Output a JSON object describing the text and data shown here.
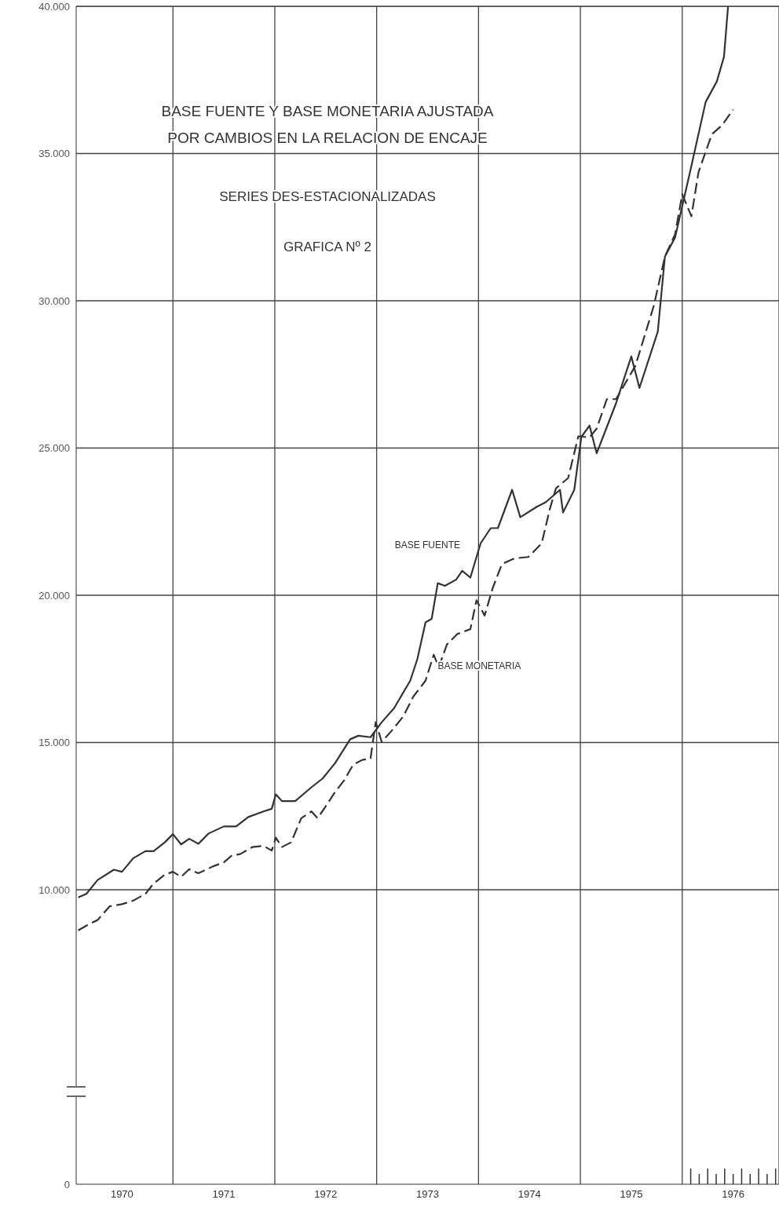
{
  "chart_data": {
    "type": "line",
    "title": "BASE FUENTE Y BASE MONETARIA AJUSTADA\nPOR CAMBIOS EN LA RELACION DE ENCAJE",
    "subtitle": "SERIES DES-ESTACIONALIZADAS",
    "annotations": [
      "GRAFICA Nº 2"
    ],
    "xlim": [
      1970.05,
      1976.95
    ],
    "ylim": [
      0,
      40000
    ],
    "xticks": [
      {
        "value": 1970.5,
        "label": "1970"
      },
      {
        "value": 1971,
        "label": null
      },
      {
        "value": 1971.5,
        "label": "1971"
      },
      {
        "value": 1972,
        "label": null
      },
      {
        "value": 1972.5,
        "label": "1972"
      },
      {
        "value": 1973,
        "label": null
      },
      {
        "value": 1973.5,
        "label": "1973"
      },
      {
        "value": 1974,
        "label": null
      },
      {
        "value": 1974.5,
        "label": "1974"
      },
      {
        "value": 1975,
        "label": null
      },
      {
        "value": 1975.5,
        "label": "1975"
      },
      {
        "value": 1976,
        "label": null
      },
      {
        "value": 1976.5,
        "label": "1976"
      }
    ],
    "yticks": [
      0,
      {
        "value": 10000,
        "label": "10.000"
      },
      {
        "value": 15000,
        "label": "15.000"
      },
      {
        "value": 20000,
        "label": "20.000"
      },
      {
        "value": 25000,
        "label": "25.000"
      },
      {
        "value": 30000,
        "label": "30.000"
      },
      {
        "value": 35000,
        "label": "35.000"
      },
      {
        "value": 40000,
        "label": "40.000"
      }
    ],
    "grid": true,
    "legend": false,
    "marker": "none",
    "series": [
      {
        "name": "BASE FUENTE",
        "color": "#333333",
        "line_style": "solid",
        "x": [
          1970.07,
          1970.15,
          1970.26,
          1970.42,
          1970.5,
          1970.61,
          1970.73,
          1970.81,
          1970.92,
          1971.0,
          1971.08,
          1971.16,
          1971.25,
          1971.35,
          1971.5,
          1971.62,
          1971.74,
          1971.89,
          1971.97,
          1972.01,
          1972.07,
          1972.2,
          1972.36,
          1972.47,
          1972.59,
          1972.74,
          1972.82,
          1972.94,
          1973.05,
          1973.17,
          1973.33,
          1973.4,
          1973.48,
          1973.54,
          1973.6,
          1973.67,
          1973.78,
          1973.84,
          1973.92,
          1974.02,
          1974.12,
          1974.19,
          1974.33,
          1974.41,
          1974.57,
          1974.66,
          1974.8,
          1974.83,
          1974.94,
          1975.01,
          1975.09,
          1975.16,
          1975.35,
          1975.5,
          1975.58,
          1975.76,
          1975.83,
          1975.93,
          1976.09,
          1976.23,
          1976.34,
          1976.41,
          1976.45
        ],
        "values": [
          9740,
          9860,
          10330,
          10680,
          10610,
          11070,
          11310,
          11310,
          11610,
          11890,
          11540,
          11730,
          11560,
          11910,
          12150,
          12150,
          12470,
          12660,
          12750,
          13240,
          13010,
          13010,
          13480,
          13780,
          14290,
          15110,
          15230,
          15180,
          15690,
          16160,
          17100,
          17840,
          19080,
          19200,
          20410,
          20320,
          20530,
          20830,
          20600,
          21760,
          22280,
          22280,
          23580,
          22650,
          23000,
          23160,
          23580,
          22810,
          23580,
          25380,
          25760,
          24820,
          26520,
          28110,
          27040,
          28950,
          31500,
          32150,
          34580,
          36750,
          37450,
          38290,
          40000
        ]
      },
      {
        "name": "BASE MONETARIA",
        "color": "#333333",
        "line_style": "dashed",
        "x": [
          1970.07,
          1970.19,
          1970.26,
          1970.38,
          1970.5,
          1970.61,
          1970.73,
          1970.81,
          1970.92,
          1971.0,
          1971.08,
          1971.16,
          1971.25,
          1971.39,
          1971.5,
          1971.58,
          1971.66,
          1971.78,
          1971.89,
          1971.97,
          1972.01,
          1972.07,
          1972.16,
          1972.26,
          1972.36,
          1972.42,
          1972.49,
          1972.59,
          1972.68,
          1972.77,
          1972.86,
          1972.94,
          1972.99,
          1973.05,
          1973.15,
          1973.26,
          1973.36,
          1973.48,
          1973.56,
          1973.61,
          1973.69,
          1973.79,
          1973.92,
          1973.98,
          1974.06,
          1974.14,
          1974.23,
          1974.35,
          1974.49,
          1974.62,
          1974.7,
          1974.76,
          1974.88,
          1974.98,
          1975.09,
          1975.16,
          1975.26,
          1975.35,
          1975.54,
          1975.72,
          1975.83,
          1975.93,
          1976.0,
          1976.09,
          1976.16,
          1976.29,
          1976.39,
          1976.5
        ],
        "values": [
          8620,
          8860,
          8970,
          9440,
          9510,
          9630,
          9860,
          10210,
          10510,
          10610,
          10440,
          10700,
          10560,
          10790,
          10930,
          11170,
          11210,
          11450,
          11490,
          11330,
          11770,
          11450,
          11610,
          12430,
          12660,
          12430,
          12780,
          13310,
          13710,
          14250,
          14410,
          14460,
          15690,
          15020,
          15410,
          15880,
          16560,
          17100,
          17980,
          17560,
          18330,
          18680,
          18850,
          19830,
          19310,
          20250,
          21060,
          21250,
          21300,
          21760,
          22930,
          23630,
          23980,
          25400,
          25360,
          25660,
          26660,
          26660,
          27790,
          29820,
          31500,
          32260,
          33620,
          32870,
          34370,
          35650,
          35960,
          36490
        ]
      }
    ]
  }
}
